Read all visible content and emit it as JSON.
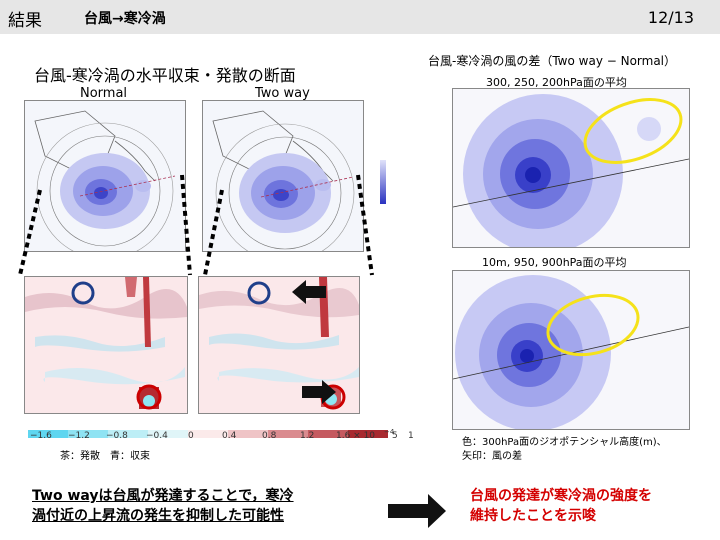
{
  "header": {
    "section": "結果",
    "subtitle": "台風→寒冷渦",
    "page": "12/13"
  },
  "left": {
    "title": "台風-寒冷渦の水平収束・発散の断面",
    "label_normal": "Normal",
    "label_twoway": "Two way",
    "colorbar_ticks": [
      "−1.6",
      "−1.2",
      "−0.8",
      "−0.4",
      "0",
      "0.4",
      "0.8",
      "1.2",
      "1.6 × 10",
      "−4",
      "5",
      "1"
    ],
    "note": "茶：発散　青：収束"
  },
  "right": {
    "title": "台風-寒冷渦の風の差（Two way − Normal）",
    "upper_caption": "300,  250,  200hPa面の平均",
    "lower_caption": "10m,  950,  900hPa面の平均",
    "note_line1": "色：300hPa面のジオポテンシャル高度(m)、",
    "note_line2": "矢印：風の差"
  },
  "conclusion": {
    "left_line1": "Two wayは台風が発達することで，寒冷",
    "left_line2": "渦付近の上昇流の発生を抑制した可能性",
    "right_line1": "台風の発達が寒冷渦の強度を",
    "right_line2": "維持したことを示唆"
  },
  "colors": {
    "header_bg": "#e6e6e6",
    "highlight_red": "#d40000",
    "circle_blue": "#1f3f8a",
    "circle_red": "#cc0000",
    "ellipse_yellow": "#f5e21a"
  }
}
